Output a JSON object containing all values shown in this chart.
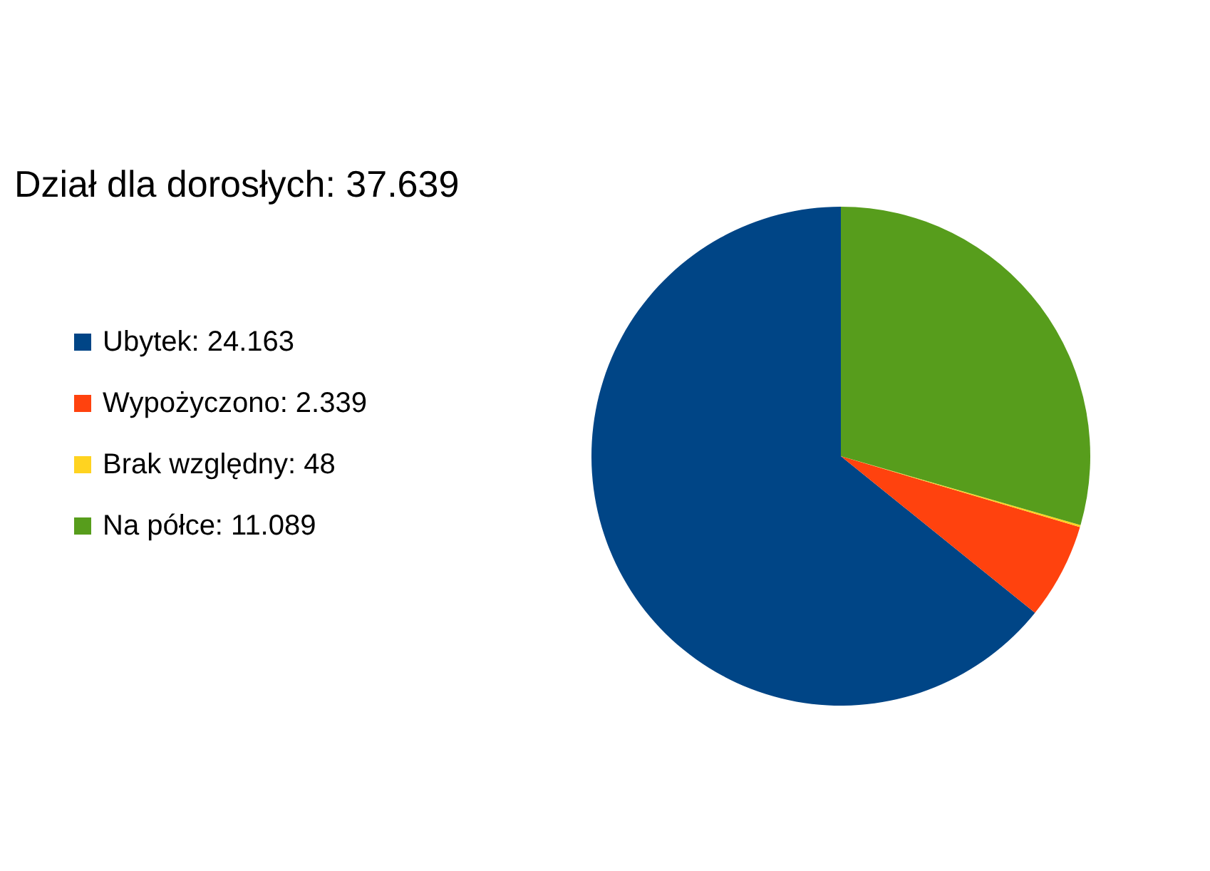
{
  "chart_data": {
    "type": "pie",
    "title": "Dział dla dorosłych: 37.639",
    "categories": [
      "Ubytek: 24.163",
      "Wypożyczono: 2.339",
      "Brak względny: 48",
      "Na półce: 11.089"
    ],
    "values": [
      24163,
      2339,
      48,
      11089
    ],
    "colors": [
      "#004586",
      "#ff420e",
      "#ffd320",
      "#579d1c"
    ],
    "legend": "left"
  }
}
